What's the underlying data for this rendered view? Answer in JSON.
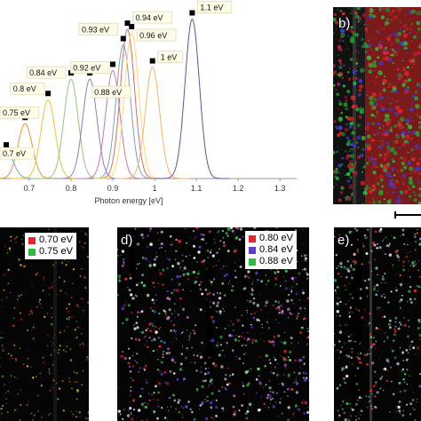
{
  "chart_data": {
    "type": "line",
    "xlabel": "Photon energy [eV]",
    "xlim": [
      0.63,
      1.34
    ],
    "x_ticks": [
      "0.7",
      "0.8",
      "0.9",
      "1",
      "1.1",
      "1.2",
      "1.3"
    ],
    "peaks": [
      {
        "label": "0.7 eV",
        "center": 0.645,
        "height": 0.16,
        "color": "#6fa8dc"
      },
      {
        "label": "0.75 eV",
        "center": 0.69,
        "height": 0.32,
        "color": "#e69138"
      },
      {
        "label": "0.8 eV",
        "center": 0.745,
        "height": 0.46,
        "color": "#f1c232"
      },
      {
        "label": "0.84 eV",
        "center": 0.8,
        "height": 0.58,
        "color": "#93c47d"
      },
      {
        "label": "0.88 eV",
        "center": 0.845,
        "height": 0.58,
        "color": "#8e7cc3"
      },
      {
        "label": "0.92 eV",
        "center": 0.9,
        "height": 0.63,
        "color": "#c27ba0"
      },
      {
        "label": "0.93 eV",
        "center": 0.925,
        "height": 0.78,
        "color": "#76a5af"
      },
      {
        "label": "0.94 eV",
        "center": 0.935,
        "height": 0.87,
        "color": "#e06666"
      },
      {
        "label": "0.96 eV",
        "center": 0.945,
        "height": 0.85,
        "color": "#ffd966"
      },
      {
        "label": "1 eV",
        "center": 0.995,
        "height": 0.65,
        "color": "#f6b26b"
      },
      {
        "label": "1.1 eV",
        "center": 1.09,
        "height": 0.93,
        "color": "#674ea7"
      }
    ]
  },
  "panels": {
    "b": {
      "label": "b)"
    },
    "c": {
      "legend": [
        {
          "label": "0.70 eV",
          "color": "#e8242c"
        },
        {
          "label": "0.75 eV",
          "color": "#2dbd3a"
        }
      ]
    },
    "d": {
      "label": "d)",
      "legend": [
        {
          "label": "0.80 eV",
          "color": "#e8242c"
        },
        {
          "label": "0.84 eV",
          "color": "#5a3bd6"
        },
        {
          "label": "0.88 eV",
          "color": "#2dbd3a"
        }
      ]
    },
    "e": {
      "label": "e)"
    }
  }
}
